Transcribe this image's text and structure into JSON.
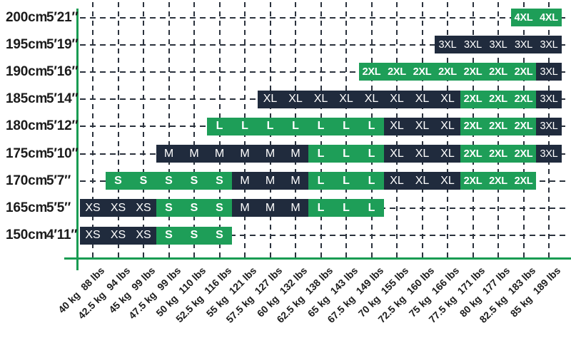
{
  "chart_data": {
    "type": "heatmap",
    "description": "Size chart matrix: body height (rows) vs body weight (columns) mapped to garment sizes",
    "legend_position": "none",
    "grid": "dashed",
    "colors": {
      "green": "#1e9e58",
      "navy": "#202b3d",
      "axis_green": "#199c52",
      "grid": "#2b323d",
      "label_text": "#1b1b1b",
      "cell_text": "#ffffff",
      "background": "#ffffff"
    },
    "y_axis": {
      "rows": [
        {
          "cm": "200cm",
          "ft": "5′21″"
        },
        {
          "cm": "195cm",
          "ft": "5′19″"
        },
        {
          "cm": "190cm",
          "ft": "5′16″"
        },
        {
          "cm": "185cm",
          "ft": "5′14″"
        },
        {
          "cm": "180cm",
          "ft": "5′12″"
        },
        {
          "cm": "175cm",
          "ft": "5′10″"
        },
        {
          "cm": "170cm",
          "ft": "5′7″"
        },
        {
          "cm": "165cm",
          "ft": "5′5″"
        },
        {
          "cm": "150cm",
          "ft": "4′11″"
        }
      ]
    },
    "x_axis": {
      "ticks": [
        {
          "kg": "40 kg",
          "lbs": "88 lbs"
        },
        {
          "kg": "42.5 kg",
          "lbs": "94 lbs"
        },
        {
          "kg": "45 kg",
          "lbs": "99 lbs"
        },
        {
          "kg": "47.5 kg",
          "lbs": "99 lbs"
        },
        {
          "kg": "50 kg",
          "lbs": "110 lbs"
        },
        {
          "kg": "52.5 kg",
          "lbs": "116 lbs"
        },
        {
          "kg": "55 kg",
          "lbs": "121 lbs"
        },
        {
          "kg": "57.5 kg",
          "lbs": "127 lbs"
        },
        {
          "kg": "60 kg",
          "lbs": "132 lbs"
        },
        {
          "kg": "62.5 kg",
          "lbs": "138 lbs"
        },
        {
          "kg": "65 kg",
          "lbs": "143 lbs"
        },
        {
          "kg": "67.5 kg",
          "lbs": "149 lbs"
        },
        {
          "kg": "70 kg",
          "lbs": "155 lbs"
        },
        {
          "kg": "72.5 kg",
          "lbs": "160 lbs"
        },
        {
          "kg": "75 kg",
          "lbs": "166 lbs"
        },
        {
          "kg": "77.5 kg",
          "lbs": "171 lbs"
        },
        {
          "kg": "80 kg",
          "lbs": "177 lbs"
        },
        {
          "kg": "82.5 kg",
          "lbs": "183 lbs"
        },
        {
          "kg": "85 kg",
          "lbs": "189 lbs"
        }
      ]
    },
    "rows": [
      {
        "height": "200cm",
        "segments": [
          {
            "size": "4XL",
            "color": "green",
            "from": 17,
            "to": 18
          }
        ]
      },
      {
        "height": "195cm",
        "segments": [
          {
            "size": "3XL",
            "color": "navy",
            "from": 14,
            "to": 18
          }
        ]
      },
      {
        "height": "190cm",
        "segments": [
          {
            "size": "2XL",
            "color": "green",
            "from": 11,
            "to": 17
          },
          {
            "size": "3XL",
            "color": "navy",
            "from": 18,
            "to": 18
          }
        ]
      },
      {
        "height": "185cm",
        "segments": [
          {
            "size": "XL",
            "color": "navy",
            "from": 7,
            "to": 14
          },
          {
            "size": "2XL",
            "color": "green",
            "from": 15,
            "to": 17
          },
          {
            "size": "3XL",
            "color": "navy",
            "from": 18,
            "to": 18
          }
        ]
      },
      {
        "height": "180cm",
        "segments": [
          {
            "size": "L",
            "color": "green",
            "from": 5,
            "to": 11
          },
          {
            "size": "XL",
            "color": "navy",
            "from": 12,
            "to": 14
          },
          {
            "size": "2XL",
            "color": "green",
            "from": 15,
            "to": 17
          },
          {
            "size": "3XL",
            "color": "navy",
            "from": 18,
            "to": 18
          }
        ]
      },
      {
        "height": "175cm",
        "segments": [
          {
            "size": "M",
            "color": "navy",
            "from": 3,
            "to": 8
          },
          {
            "size": "L",
            "color": "green",
            "from": 9,
            "to": 11
          },
          {
            "size": "XL",
            "color": "navy",
            "from": 12,
            "to": 14
          },
          {
            "size": "2XL",
            "color": "green",
            "from": 15,
            "to": 17
          },
          {
            "size": "3XL",
            "color": "navy",
            "from": 18,
            "to": 18
          }
        ]
      },
      {
        "height": "170cm",
        "segments": [
          {
            "size": "S",
            "color": "green",
            "from": 1,
            "to": 5
          },
          {
            "size": "M",
            "color": "navy",
            "from": 6,
            "to": 8
          },
          {
            "size": "L",
            "color": "green",
            "from": 9,
            "to": 11
          },
          {
            "size": "XL",
            "color": "navy",
            "from": 12,
            "to": 14
          },
          {
            "size": "2XL",
            "color": "green",
            "from": 15,
            "to": 17
          }
        ]
      },
      {
        "height": "165cm",
        "segments": [
          {
            "size": "XS",
            "color": "navy",
            "from": 0,
            "to": 2
          },
          {
            "size": "S",
            "color": "green",
            "from": 3,
            "to": 5
          },
          {
            "size": "M",
            "color": "navy",
            "from": 6,
            "to": 8
          },
          {
            "size": "L",
            "color": "green",
            "from": 9,
            "to": 11
          }
        ]
      },
      {
        "height": "150cm",
        "segments": [
          {
            "size": "XS",
            "color": "navy",
            "from": 0,
            "to": 2
          },
          {
            "size": "S",
            "color": "green",
            "from": 3,
            "to": 5
          }
        ]
      }
    ]
  }
}
